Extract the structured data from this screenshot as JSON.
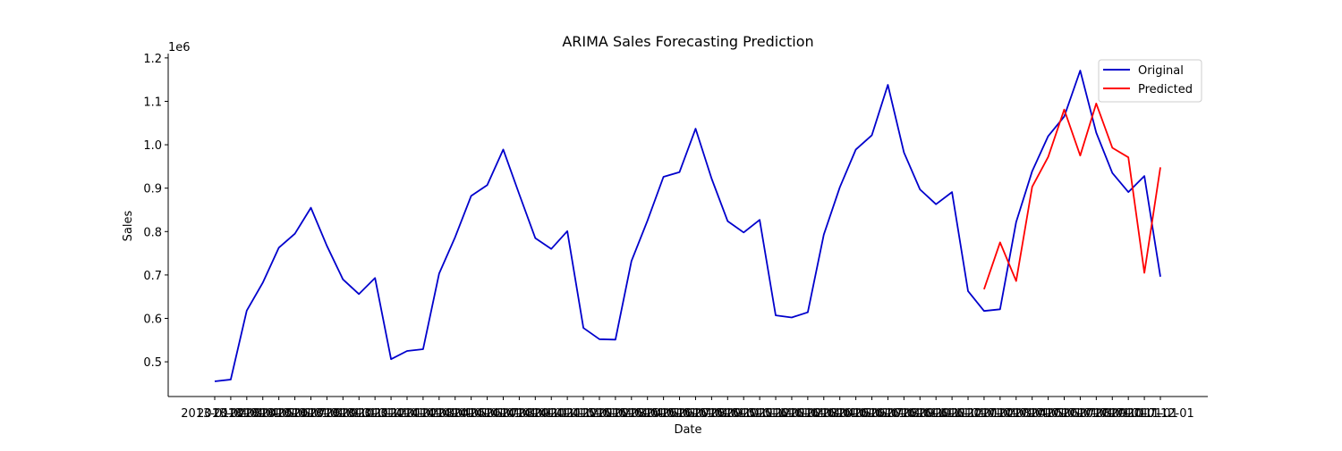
{
  "chart_data": {
    "type": "line",
    "title": "ARIMA Sales Forecasting Prediction",
    "xlabel": "Date",
    "ylabel": "Sales",
    "y_offset_label": "1e6",
    "ylim": [
      420000,
      1210000
    ],
    "y_ticks": [
      500000,
      600000,
      700000,
      800000,
      900000,
      1000000,
      1100000,
      1200000
    ],
    "y_tick_labels": [
      "0.5",
      "0.6",
      "0.7",
      "0.8",
      "0.9",
      "1.0",
      "1.1",
      "1.2"
    ],
    "legend": {
      "position": "top-right"
    },
    "x": [
      "2013-01-01",
      "2013-02-01",
      "2013-03-01",
      "2013-04-01",
      "2013-05-01",
      "2013-06-01",
      "2013-07-01",
      "2013-08-01",
      "2013-09-01",
      "2013-10-01",
      "2013-11-01",
      "2013-12-01",
      "2014-01-01",
      "2014-02-01",
      "2014-03-01",
      "2014-04-01",
      "2014-05-01",
      "2014-06-01",
      "2014-07-01",
      "2014-08-01",
      "2014-09-01",
      "2014-10-01",
      "2014-11-01",
      "2014-12-01",
      "2015-01-01",
      "2015-02-01",
      "2015-03-01",
      "2015-04-01",
      "2015-05-01",
      "2015-06-01",
      "2015-07-01",
      "2015-08-01",
      "2015-09-01",
      "2015-10-01",
      "2015-11-01",
      "2015-12-01",
      "2016-01-01",
      "2016-02-01",
      "2016-03-01",
      "2016-04-01",
      "2016-05-01",
      "2016-06-01",
      "2016-07-01",
      "2016-08-01",
      "2016-09-01",
      "2016-10-01",
      "2016-11-01",
      "2016-12-01",
      "2017-01-01",
      "2017-02-01",
      "2017-03-01",
      "2017-04-01",
      "2017-05-01",
      "2017-06-01",
      "2017-07-01",
      "2017-08-01",
      "2017-09-01",
      "2017-10-01",
      "2017-11-01",
      "2017-12-01"
    ],
    "series": [
      {
        "name": "Original",
        "color": "#0000cc",
        "x": [
          "2013-01-01",
          "2013-02-01",
          "2013-03-01",
          "2013-04-01",
          "2013-05-01",
          "2013-06-01",
          "2013-07-01",
          "2013-08-01",
          "2013-09-01",
          "2013-10-01",
          "2013-11-01",
          "2013-12-01",
          "2014-01-01",
          "2014-02-01",
          "2014-03-01",
          "2014-04-01",
          "2014-05-01",
          "2014-06-01",
          "2014-07-01",
          "2014-08-01",
          "2014-09-01",
          "2014-10-01",
          "2014-11-01",
          "2014-12-01",
          "2015-01-01",
          "2015-02-01",
          "2015-03-01",
          "2015-04-01",
          "2015-05-01",
          "2015-06-01",
          "2015-07-01",
          "2015-08-01",
          "2015-09-01",
          "2015-10-01",
          "2015-11-01",
          "2015-12-01",
          "2016-01-01",
          "2016-02-01",
          "2016-03-01",
          "2016-04-01",
          "2016-05-01",
          "2016-06-01",
          "2016-07-01",
          "2016-08-01",
          "2016-09-01",
          "2016-10-01",
          "2016-11-01",
          "2016-12-01",
          "2017-01-01",
          "2017-02-01",
          "2017-03-01",
          "2017-04-01",
          "2017-05-01",
          "2017-06-01",
          "2017-07-01",
          "2017-08-01",
          "2017-09-01",
          "2017-10-01",
          "2017-11-01",
          "2017-12-01"
        ],
        "values": [
          455000,
          459000,
          618000,
          682000,
          763000,
          795000,
          855000,
          767000,
          690000,
          656000,
          693000,
          506000,
          525000,
          529000,
          703000,
          787000,
          882000,
          907000,
          989000,
          886000,
          785000,
          760000,
          801000,
          578000,
          552000,
          551000,
          732000,
          825000,
          926000,
          937000,
          1037000,
          922000,
          824000,
          798000,
          827000,
          607000,
          602000,
          614000,
          793000,
          902000,
          989000,
          1022000,
          1138000,
          982000,
          897000,
          863000,
          891000,
          663000,
          617000,
          621000,
          822000,
          939000,
          1020000,
          1065000,
          1171000,
          1028000,
          935000,
          891000,
          928000,
          696000
        ]
      },
      {
        "name": "Predicted",
        "color": "#ff0000",
        "x": [
          "2017-01-01",
          "2017-02-01",
          "2017-03-01",
          "2017-04-01",
          "2017-05-01",
          "2017-06-01",
          "2017-07-01",
          "2017-08-01",
          "2017-09-01",
          "2017-10-01",
          "2017-11-01",
          "2017-12-01"
        ],
        "values": [
          667000,
          775000,
          686000,
          903000,
          972000,
          1081000,
          975000,
          1095000,
          993000,
          971000,
          705000,
          948000
        ]
      }
    ]
  }
}
